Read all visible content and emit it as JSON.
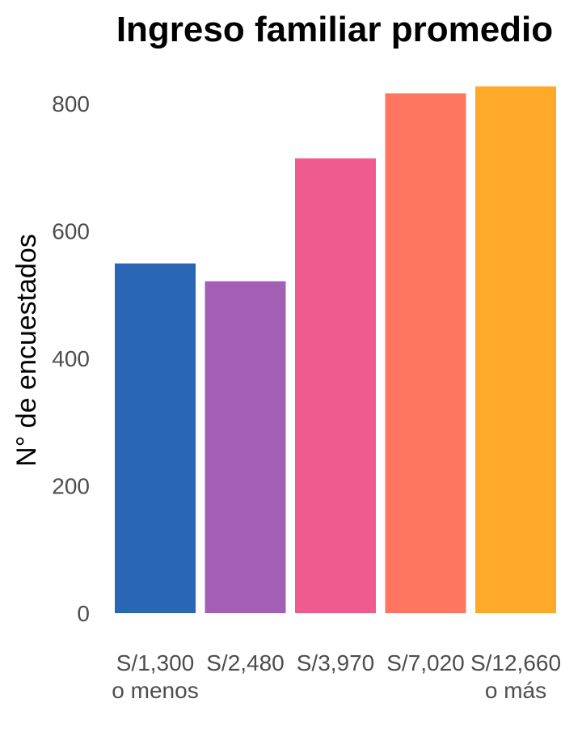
{
  "chart_data": {
    "type": "bar",
    "title": "Ingreso familiar promedio",
    "xlabel": "",
    "ylabel": "N° de encuestados",
    "categories": [
      [
        "S/1,300",
        "o menos"
      ],
      [
        "S/2,480"
      ],
      [
        "S/3,970"
      ],
      [
        "S/7,020"
      ],
      [
        "S/12,660",
        "o más"
      ]
    ],
    "values": [
      549,
      521,
      714,
      816,
      827
    ],
    "colors": [
      "#2966b4",
      "#a35fb4",
      "#ef5b91",
      "#ff7660",
      "#ffa928"
    ],
    "yticks": [
      0,
      200,
      400,
      600,
      800
    ],
    "ylim": [
      0,
      860
    ],
    "grid": false,
    "legend": "none"
  }
}
